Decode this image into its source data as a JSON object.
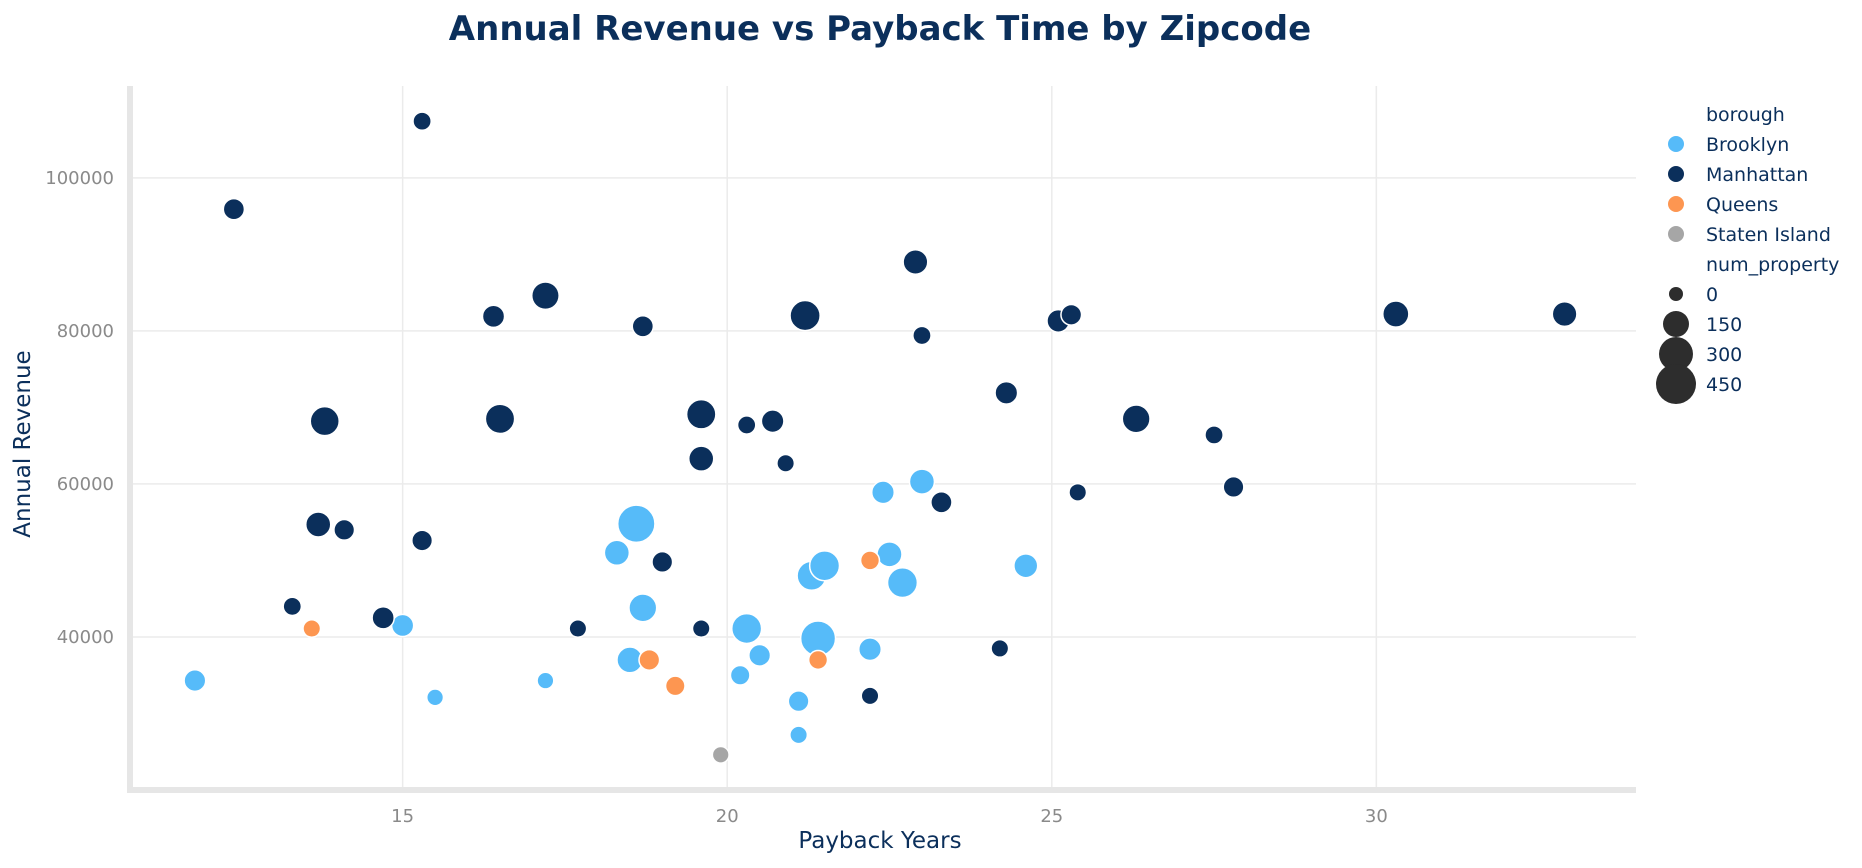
{
  "chart_data": {
    "type": "scatter",
    "title": "Annual Revenue vs Payback Time by Zipcode",
    "xlabel": "Payback Years",
    "ylabel": "Annual Revenue",
    "xlim": [
      10.8,
      34
    ],
    "ylim": [
      20000,
      112000
    ],
    "xticks": [
      15,
      20,
      25,
      30
    ],
    "yticks": [
      40000,
      60000,
      80000,
      100000
    ],
    "grid": true,
    "legend_position": "right",
    "hue_title": "borough",
    "size_title": "num_property",
    "size_legend": [
      0,
      150,
      300,
      450
    ],
    "colors": {
      "Brooklyn": "#56bbf9",
      "Manhattan": "#0b2f5b",
      "Queens": "#fd9651",
      "Staten Island": "#a6a6a6"
    },
    "series": [
      {
        "name": "Brooklyn",
        "points": [
          {
            "x": 11.8,
            "y": 34300,
            "size": 60
          },
          {
            "x": 15.0,
            "y": 41500,
            "size": 65
          },
          {
            "x": 15.5,
            "y": 32100,
            "size": 20
          },
          {
            "x": 17.2,
            "y": 34300,
            "size": 20
          },
          {
            "x": 18.3,
            "y": 51000,
            "size": 100
          },
          {
            "x": 18.5,
            "y": 37000,
            "size": 110
          },
          {
            "x": 18.6,
            "y": 54800,
            "size": 330
          },
          {
            "x": 18.7,
            "y": 43800,
            "size": 140
          },
          {
            "x": 20.2,
            "y": 35000,
            "size": 40
          },
          {
            "x": 20.3,
            "y": 41100,
            "size": 175
          },
          {
            "x": 20.5,
            "y": 37600,
            "size": 60
          },
          {
            "x": 21.1,
            "y": 31600,
            "size": 50
          },
          {
            "x": 21.1,
            "y": 27200,
            "size": 25
          },
          {
            "x": 21.3,
            "y": 48000,
            "size": 160
          },
          {
            "x": 21.4,
            "y": 39800,
            "size": 275
          },
          {
            "x": 21.5,
            "y": 49300,
            "size": 175
          },
          {
            "x": 22.2,
            "y": 38400,
            "size": 70
          },
          {
            "x": 22.4,
            "y": 58900,
            "size": 70
          },
          {
            "x": 22.5,
            "y": 50800,
            "size": 100
          },
          {
            "x": 22.7,
            "y": 47100,
            "size": 175
          },
          {
            "x": 23.0,
            "y": 60300,
            "size": 100
          },
          {
            "x": 24.6,
            "y": 49300,
            "size": 85
          }
        ]
      },
      {
        "name": "Manhattan",
        "points": [
          {
            "x": 12.4,
            "y": 95900,
            "size": 55
          },
          {
            "x": 13.3,
            "y": 44000,
            "size": 30
          },
          {
            "x": 13.7,
            "y": 54700,
            "size": 100
          },
          {
            "x": 13.8,
            "y": 68200,
            "size": 160
          },
          {
            "x": 14.1,
            "y": 54000,
            "size": 50
          },
          {
            "x": 14.7,
            "y": 42500,
            "size": 65
          },
          {
            "x": 15.3,
            "y": 107400,
            "size": 30
          },
          {
            "x": 15.3,
            "y": 52600,
            "size": 50
          },
          {
            "x": 16.4,
            "y": 81900,
            "size": 65
          },
          {
            "x": 16.5,
            "y": 68500,
            "size": 165
          },
          {
            "x": 17.2,
            "y": 84600,
            "size": 135
          },
          {
            "x": 17.7,
            "y": 41100,
            "size": 25
          },
          {
            "x": 18.7,
            "y": 80600,
            "size": 55
          },
          {
            "x": 19.0,
            "y": 49800,
            "size": 50
          },
          {
            "x": 19.6,
            "y": 41100,
            "size": 25
          },
          {
            "x": 19.6,
            "y": 69100,
            "size": 165
          },
          {
            "x": 19.6,
            "y": 63300,
            "size": 100
          },
          {
            "x": 20.3,
            "y": 67700,
            "size": 30
          },
          {
            "x": 20.7,
            "y": 68200,
            "size": 70
          },
          {
            "x": 20.9,
            "y": 62700,
            "size": 25
          },
          {
            "x": 21.2,
            "y": 82000,
            "size": 180
          },
          {
            "x": 22.2,
            "y": 32300,
            "size": 25
          },
          {
            "x": 22.9,
            "y": 89000,
            "size": 95
          },
          {
            "x": 23.0,
            "y": 79400,
            "size": 30
          },
          {
            "x": 23.3,
            "y": 57600,
            "size": 55
          },
          {
            "x": 24.2,
            "y": 38500,
            "size": 25
          },
          {
            "x": 24.3,
            "y": 71900,
            "size": 70
          },
          {
            "x": 25.1,
            "y": 81300,
            "size": 70
          },
          {
            "x": 25.3,
            "y": 82100,
            "size": 50
          },
          {
            "x": 25.4,
            "y": 58900,
            "size": 25
          },
          {
            "x": 26.3,
            "y": 68500,
            "size": 140
          },
          {
            "x": 27.5,
            "y": 66400,
            "size": 30
          },
          {
            "x": 27.8,
            "y": 59600,
            "size": 50
          },
          {
            "x": 30.3,
            "y": 82200,
            "size": 115
          },
          {
            "x": 32.9,
            "y": 82200,
            "size": 95
          }
        ]
      },
      {
        "name": "Queens",
        "points": [
          {
            "x": 13.6,
            "y": 41100,
            "size": 25
          },
          {
            "x": 18.8,
            "y": 37000,
            "size": 50
          },
          {
            "x": 19.2,
            "y": 33600,
            "size": 40
          },
          {
            "x": 21.4,
            "y": 37000,
            "size": 35
          },
          {
            "x": 22.2,
            "y": 50000,
            "size": 35
          }
        ]
      },
      {
        "name": "Staten Island",
        "points": [
          {
            "x": 19.9,
            "y": 24600,
            "size": 20
          }
        ]
      }
    ]
  }
}
